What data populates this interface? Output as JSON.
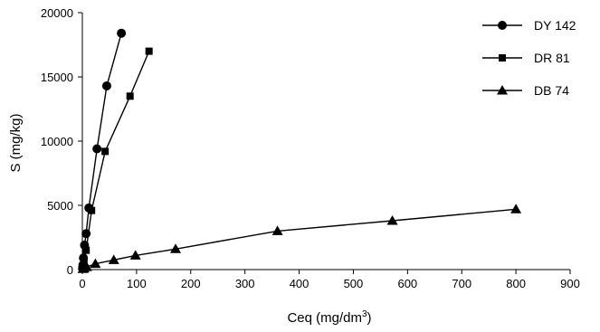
{
  "chart_data": {
    "type": "scatter",
    "title": "",
    "xlabel": "Ceq (mg/dm",
    "xlabel_sup": "3",
    "xlabel_end": ")",
    "ylabel": "S (mg/kg)",
    "xlim": [
      0,
      900
    ],
    "ylim": [
      0,
      20000
    ],
    "xticks": [
      0,
      100,
      200,
      300,
      400,
      500,
      600,
      700,
      800,
      900
    ],
    "yticks": [
      0,
      5000,
      10000,
      15000,
      20000
    ],
    "grid": false,
    "legend_position": "top-right",
    "series": [
      {
        "name": "DY 142",
        "marker": "circle",
        "x": [
          0.5,
          1,
          2,
          4,
          7,
          12,
          27,
          45,
          72
        ],
        "y": [
          150,
          350,
          900,
          1900,
          2800,
          4800,
          9400,
          14300,
          18400
        ]
      },
      {
        "name": "DR 81",
        "marker": "square",
        "x": [
          0.5,
          1,
          3,
          7,
          17,
          42,
          88,
          123
        ],
        "y": [
          120,
          300,
          700,
          1500,
          4600,
          9200,
          13500,
          17000
        ]
      },
      {
        "name": "DB 74",
        "marker": "triangle",
        "x": [
          1,
          3,
          8,
          24,
          58,
          98,
          172,
          360,
          572,
          800
        ],
        "y": [
          50,
          100,
          200,
          450,
          750,
          1100,
          1600,
          3000,
          3800,
          4700
        ]
      }
    ]
  }
}
